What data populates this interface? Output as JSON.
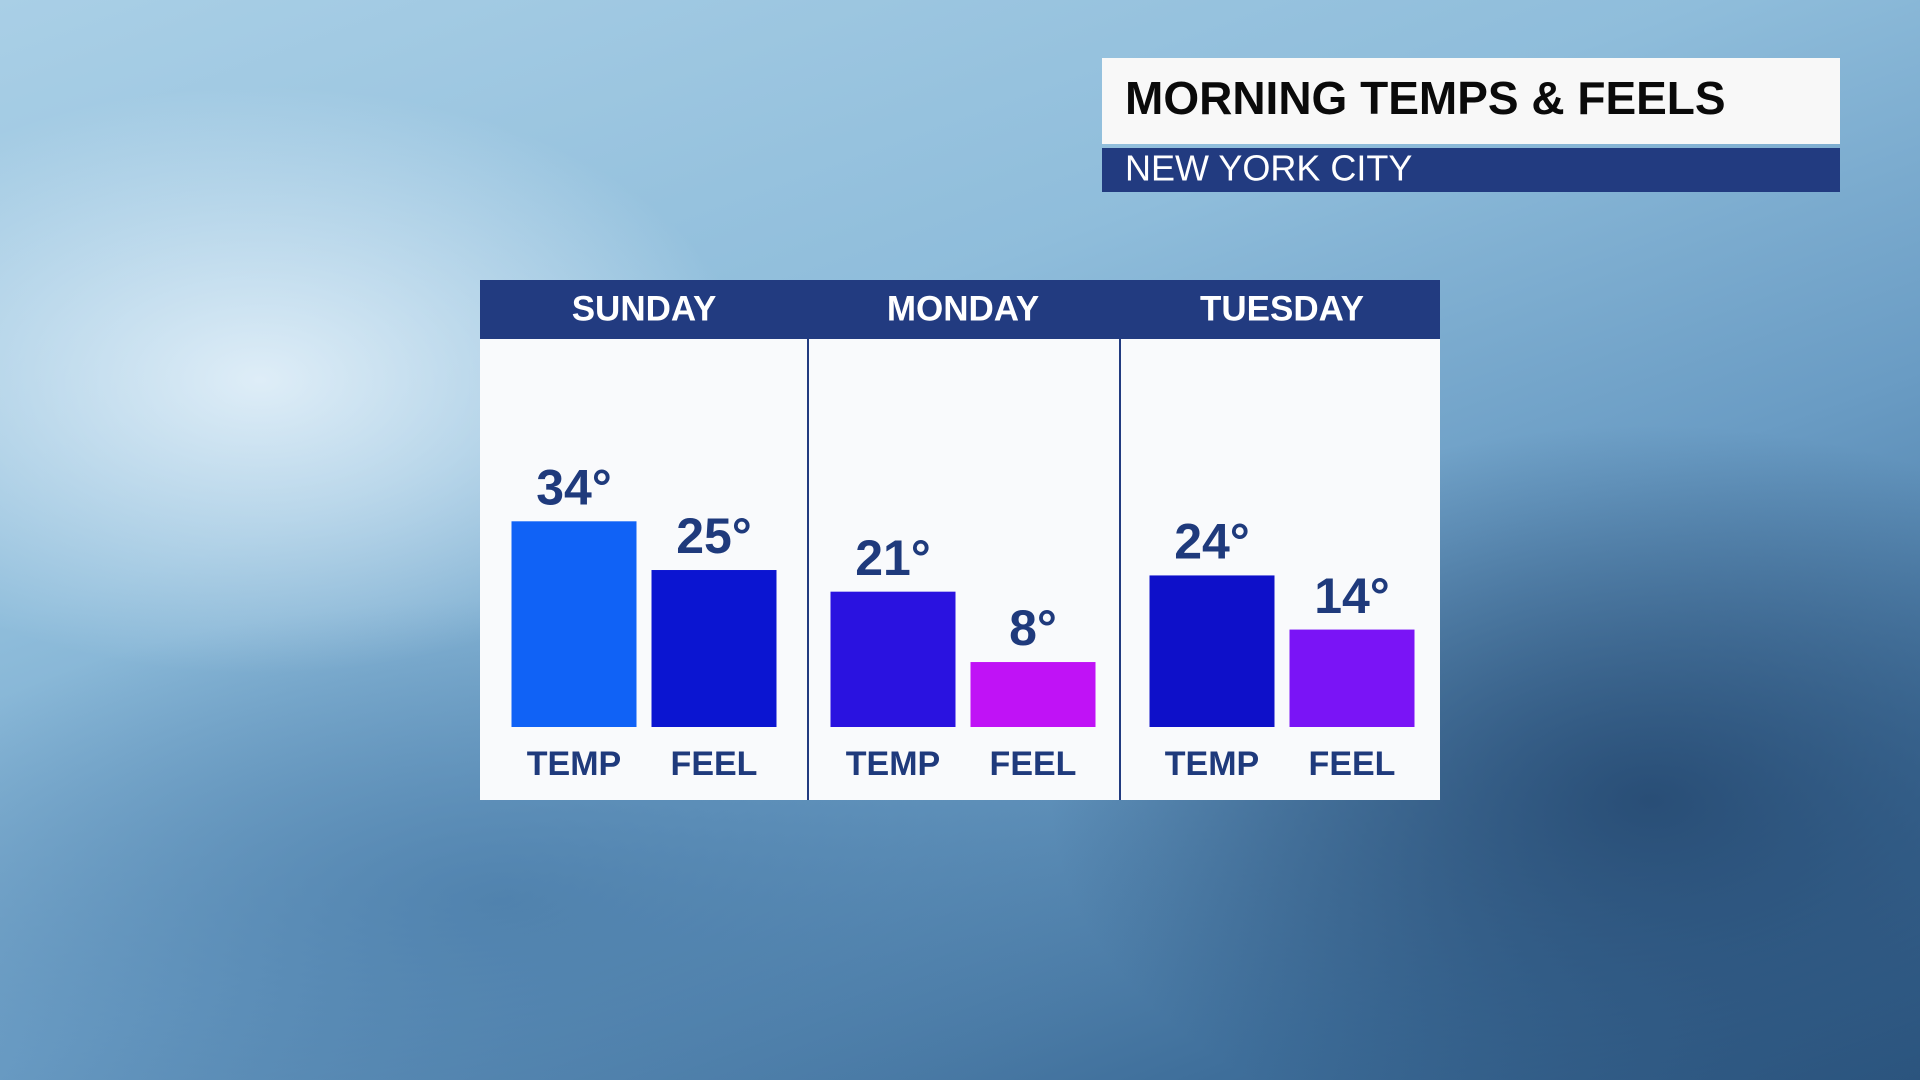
{
  "chart_data": {
    "type": "bar",
    "title": "MORNING TEMPS & FEELS",
    "subtitle": "NEW YORK CITY",
    "categories": [
      "SUNDAY",
      "MONDAY",
      "TUESDAY"
    ],
    "series": [
      {
        "name": "TEMP",
        "values": [
          34,
          21,
          24
        ],
        "value_labels": [
          "34°",
          "21°",
          "24°"
        ],
        "colors": [
          "#1062f6",
          "#2a12e0",
          "#0e10c9"
        ]
      },
      {
        "name": "FEEL",
        "values": [
          25,
          8,
          14
        ],
        "value_labels": [
          "25°",
          "8°",
          "14°"
        ],
        "colors": [
          "#0b15d1",
          "#c012f6",
          "#7a14f6"
        ]
      }
    ],
    "ylim": [
      -4,
      42
    ]
  }
}
